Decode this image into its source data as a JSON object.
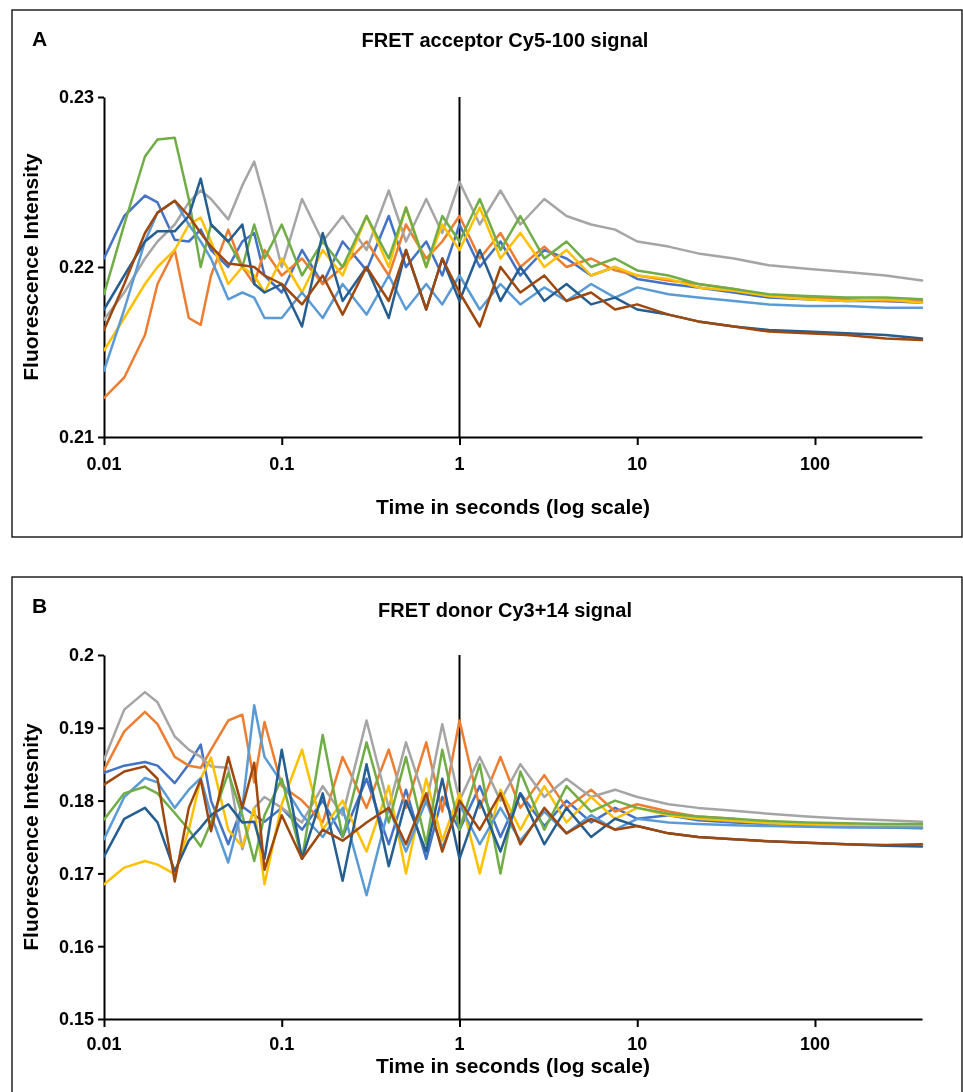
{
  "chart_data": [
    {
      "type": "line",
      "title": "FRET acceptor Cy5-100 signal",
      "xlabel": "Time in seconds (log scale)",
      "ylabel": "Fluorescence Intensity",
      "annotations": [
        "A"
      ],
      "log": "x",
      "xlim": [
        0.01,
        400
      ],
      "xticks": [
        0.01,
        0.1,
        1,
        10,
        100
      ],
      "ylim": [
        0.21,
        0.23
      ],
      "yticks": [
        0.21,
        0.22,
        0.23
      ],
      "x": [
        0.01,
        0.013,
        0.017,
        0.02,
        0.025,
        0.03,
        0.035,
        0.04,
        0.05,
        0.06,
        0.07,
        0.08,
        0.1,
        0.13,
        0.17,
        0.22,
        0.3,
        0.4,
        0.5,
        0.65,
        0.8,
        1,
        1.3,
        1.7,
        2.2,
        3,
        4,
        5.5,
        7.5,
        10,
        15,
        22,
        35,
        55,
        90,
        150,
        250,
        400
      ],
      "series": [
        {
          "color": "#4472c4",
          "values": [
            0.2205,
            0.223,
            0.2242,
            0.2238,
            0.2216,
            0.2215,
            0.2222,
            0.221,
            0.22,
            0.2215,
            0.222,
            0.2195,
            0.2185,
            0.221,
            0.219,
            0.2215,
            0.2198,
            0.223,
            0.22,
            0.2215,
            0.2195,
            0.2225,
            0.22,
            0.2215,
            0.2195,
            0.221,
            0.2205,
            0.2195,
            0.22,
            0.2193,
            0.219,
            0.2188,
            0.2185,
            0.2182,
            0.2181,
            0.218,
            0.218,
            0.2179
          ]
        },
        {
          "color": "#ed7d31",
          "values": [
            0.2123,
            0.2135,
            0.216,
            0.219,
            0.221,
            0.217,
            0.2166,
            0.2195,
            0.2222,
            0.22,
            0.219,
            0.221,
            0.2195,
            0.2205,
            0.219,
            0.22,
            0.2215,
            0.2195,
            0.2225,
            0.2205,
            0.2215,
            0.223,
            0.2205,
            0.222,
            0.22,
            0.2212,
            0.22,
            0.2205,
            0.2198,
            0.2195,
            0.2192,
            0.219,
            0.2187,
            0.2183,
            0.2182,
            0.2181,
            0.218,
            0.218
          ]
        },
        {
          "color": "#a5a5a5",
          "values": [
            0.2169,
            0.2185,
            0.2205,
            0.2215,
            0.2225,
            0.2238,
            0.2245,
            0.224,
            0.2228,
            0.2248,
            0.2262,
            0.224,
            0.22,
            0.224,
            0.2215,
            0.223,
            0.221,
            0.2245,
            0.2215,
            0.224,
            0.222,
            0.225,
            0.2225,
            0.2245,
            0.2225,
            0.224,
            0.223,
            0.2225,
            0.2222,
            0.2215,
            0.2212,
            0.2208,
            0.2205,
            0.2201,
            0.2199,
            0.2197,
            0.2195,
            0.2192
          ]
        },
        {
          "color": "#ffc000",
          "values": [
            0.2151,
            0.217,
            0.219,
            0.22,
            0.221,
            0.2225,
            0.2229,
            0.2215,
            0.219,
            0.22,
            0.2195,
            0.2185,
            0.2205,
            0.2185,
            0.221,
            0.2195,
            0.223,
            0.22,
            0.2235,
            0.22,
            0.2225,
            0.221,
            0.2235,
            0.2205,
            0.222,
            0.22,
            0.221,
            0.2195,
            0.22,
            0.2195,
            0.2193,
            0.2188,
            0.2186,
            0.2183,
            0.2181,
            0.218,
            0.2181,
            0.2179
          ]
        },
        {
          "color": "#5b9bd5",
          "values": [
            0.2139,
            0.2175,
            0.2215,
            0.2232,
            0.2239,
            0.2225,
            0.2215,
            0.2205,
            0.2181,
            0.2185,
            0.2182,
            0.217,
            0.217,
            0.2185,
            0.217,
            0.219,
            0.2172,
            0.2195,
            0.2175,
            0.219,
            0.2178,
            0.2195,
            0.2175,
            0.219,
            0.2178,
            0.2188,
            0.218,
            0.219,
            0.2182,
            0.2188,
            0.2184,
            0.2182,
            0.218,
            0.2178,
            0.2177,
            0.2177,
            0.2176,
            0.2176
          ]
        },
        {
          "color": "#70ad47",
          "values": [
            0.2184,
            0.2225,
            0.2265,
            0.2275,
            0.2276,
            0.224,
            0.22,
            0.2225,
            0.2215,
            0.22,
            0.2225,
            0.2205,
            0.2225,
            0.2195,
            0.2215,
            0.22,
            0.223,
            0.2205,
            0.2235,
            0.22,
            0.223,
            0.2215,
            0.224,
            0.221,
            0.223,
            0.2205,
            0.2215,
            0.22,
            0.2205,
            0.2198,
            0.2195,
            0.219,
            0.2187,
            0.2184,
            0.2183,
            0.2182,
            0.2182,
            0.2181
          ]
        },
        {
          "color": "#255e91",
          "values": [
            0.2175,
            0.2195,
            0.2215,
            0.2221,
            0.2221,
            0.223,
            0.2252,
            0.2225,
            0.2215,
            0.2225,
            0.219,
            0.2185,
            0.219,
            0.2165,
            0.222,
            0.218,
            0.22,
            0.217,
            0.221,
            0.2175,
            0.2205,
            0.218,
            0.221,
            0.218,
            0.22,
            0.218,
            0.219,
            0.2178,
            0.2182,
            0.2175,
            0.2172,
            0.2168,
            0.2165,
            0.2163,
            0.2162,
            0.2161,
            0.216,
            0.2158
          ]
        },
        {
          "color": "#9e480e",
          "values": [
            0.2163,
            0.219,
            0.222,
            0.2232,
            0.2239,
            0.223,
            0.222,
            0.2212,
            0.2202,
            0.2201,
            0.22,
            0.2195,
            0.219,
            0.2178,
            0.2195,
            0.2172,
            0.22,
            0.218,
            0.221,
            0.2175,
            0.2205,
            0.2185,
            0.2165,
            0.22,
            0.2185,
            0.2195,
            0.218,
            0.2185,
            0.2175,
            0.2178,
            0.2172,
            0.2168,
            0.2165,
            0.2162,
            0.2161,
            0.216,
            0.2158,
            0.2157
          ]
        }
      ]
    },
    {
      "type": "line",
      "title": "FRET donor Cy3+14 signal",
      "xlabel": "Time in seconds (log scale)",
      "ylabel": "Fluorescence Intesnity",
      "annotations": [
        "B"
      ],
      "log": "x",
      "xlim": [
        0.01,
        400
      ],
      "xticks": [
        0.01,
        0.1,
        1,
        10,
        100
      ],
      "ylim": [
        0.15,
        0.2
      ],
      "yticks": [
        0.15,
        0.16,
        0.17,
        0.18,
        0.19,
        0.2
      ],
      "x": [
        0.01,
        0.013,
        0.017,
        0.02,
        0.025,
        0.03,
        0.035,
        0.04,
        0.05,
        0.06,
        0.07,
        0.08,
        0.1,
        0.13,
        0.17,
        0.22,
        0.3,
        0.4,
        0.5,
        0.65,
        0.8,
        1,
        1.3,
        1.7,
        2.2,
        3,
        4,
        5.5,
        7.5,
        10,
        15,
        22,
        35,
        55,
        90,
        150,
        250,
        400
      ],
      "series": [
        {
          "color": "#4472c4",
          "values": [
            0.1838,
            0.1848,
            0.1853,
            0.1848,
            0.1824,
            0.185,
            0.1877,
            0.18,
            0.174,
            0.1792,
            0.178,
            0.1771,
            0.179,
            0.176,
            0.18,
            0.175,
            0.183,
            0.174,
            0.1815,
            0.172,
            0.1805,
            0.176,
            0.182,
            0.175,
            0.181,
            0.1765,
            0.18,
            0.177,
            0.179,
            0.1775,
            0.178,
            0.1773,
            0.177,
            0.1768,
            0.1766,
            0.1764,
            0.1763,
            0.1762
          ]
        },
        {
          "color": "#ed7d31",
          "values": [
            0.1842,
            0.1895,
            0.1922,
            0.1905,
            0.186,
            0.1848,
            0.1845,
            0.187,
            0.191,
            0.1918,
            0.1825,
            0.1908,
            0.182,
            0.18,
            0.177,
            0.186,
            0.179,
            0.187,
            0.179,
            0.188,
            0.1785,
            0.191,
            0.179,
            0.186,
            0.179,
            0.1835,
            0.179,
            0.1815,
            0.1785,
            0.1795,
            0.1785,
            0.1778,
            0.1775,
            null,
            null,
            null,
            null,
            null
          ]
        },
        {
          "color": "#a5a5a5",
          "values": [
            0.1856,
            0.1925,
            0.1949,
            0.1935,
            0.1888,
            0.187,
            0.186,
            0.1847,
            0.1845,
            0.1733,
            0.179,
            0.1805,
            0.179,
            0.177,
            0.182,
            0.178,
            0.191,
            0.179,
            0.188,
            0.1795,
            0.1905,
            0.18,
            0.186,
            0.18,
            0.185,
            0.1805,
            0.183,
            0.1805,
            0.1815,
            0.1805,
            0.1795,
            0.179,
            0.1786,
            0.1782,
            0.1778,
            0.1775,
            0.1773,
            0.1771
          ]
        },
        {
          "color": "#ffc000",
          "values": [
            0.1685,
            0.1708,
            0.1717,
            0.1712,
            0.1699,
            0.176,
            0.183,
            0.1859,
            0.176,
            0.1737,
            0.179,
            0.1685,
            0.1795,
            0.187,
            0.176,
            0.18,
            0.173,
            0.182,
            0.17,
            0.183,
            0.1745,
            0.181,
            0.17,
            0.1815,
            0.176,
            0.182,
            0.177,
            0.1805,
            0.1775,
            0.179,
            0.178,
            0.1775,
            0.1772,
            0.1769,
            0.1767,
            0.1766,
            0.1765,
            0.1765
          ]
        },
        {
          "color": "#5b9bd5",
          "values": [
            0.1747,
            0.1805,
            0.1831,
            0.1825,
            0.179,
            0.1815,
            0.1831,
            0.178,
            0.1715,
            0.179,
            0.1931,
            0.186,
            0.1825,
            0.178,
            0.175,
            0.179,
            0.167,
            0.179,
            0.173,
            0.18,
            0.1735,
            0.1795,
            0.174,
            0.179,
            0.1745,
            0.1785,
            0.1755,
            0.178,
            0.176,
            0.1775,
            0.177,
            0.1768,
            0.1766,
            0.1765,
            0.1764,
            0.1763,
            0.1763,
            0.1763
          ]
        },
        {
          "color": "#70ad47",
          "values": [
            0.1774,
            0.181,
            0.1819,
            0.181,
            0.1783,
            0.176,
            0.1737,
            0.177,
            0.1838,
            0.178,
            0.1717,
            0.178,
            0.183,
            0.172,
            0.189,
            0.175,
            0.188,
            0.177,
            0.186,
            0.174,
            0.187,
            0.176,
            0.185,
            0.17,
            0.184,
            0.176,
            0.182,
            0.1785,
            0.18,
            0.179,
            0.1782,
            0.1778,
            0.1775,
            0.1772,
            0.177,
            0.1769,
            0.1768,
            0.1768
          ]
        },
        {
          "color": "#255e91",
          "values": [
            0.1723,
            0.1775,
            0.179,
            0.177,
            0.1703,
            0.1745,
            0.1763,
            0.178,
            0.1795,
            0.177,
            0.1771,
            0.172,
            0.187,
            0.172,
            0.181,
            0.169,
            0.185,
            0.171,
            0.18,
            0.173,
            0.183,
            0.172,
            0.18,
            0.173,
            0.181,
            0.174,
            0.179,
            0.175,
            0.1775,
            0.1765,
            0.1755,
            0.175,
            0.1747,
            0.1744,
            0.1742,
            0.174,
            0.1738,
            0.1737
          ]
        },
        {
          "color": "#9e480e",
          "values": [
            0.1822,
            0.184,
            0.1847,
            0.183,
            0.1689,
            0.179,
            0.1829,
            0.1758,
            0.186,
            0.179,
            0.1852,
            0.1705,
            0.178,
            0.172,
            0.176,
            0.1745,
            0.177,
            0.179,
            0.174,
            0.181,
            0.173,
            0.18,
            0.176,
            0.181,
            0.174,
            0.179,
            0.1755,
            0.1775,
            0.176,
            0.1765,
            0.1755,
            0.175,
            0.1747,
            0.1744,
            0.1742,
            0.174,
            0.1739,
            0.174
          ]
        }
      ]
    }
  ]
}
